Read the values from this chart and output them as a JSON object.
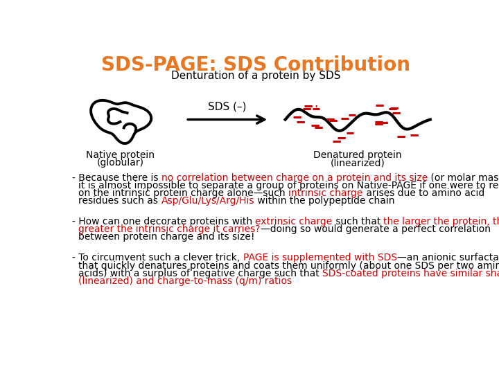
{
  "title": "SDS-PAGE: SDS Contribution",
  "title_color": "#E87722",
  "title_fontsize": 20,
  "subtitle": "Denturation of a protein by SDS",
  "subtitle_fontsize": 11,
  "arrow_label": "SDS (–)",
  "native_label1": "Native protein",
  "native_label2": "(globular)",
  "denatured_label1": "Denatured protein",
  "denatured_label2": "(linearized)",
  "bg_color": "#ffffff",
  "text_color": "#000000",
  "red_color": "#cc0000",
  "text_fontsize": 10
}
